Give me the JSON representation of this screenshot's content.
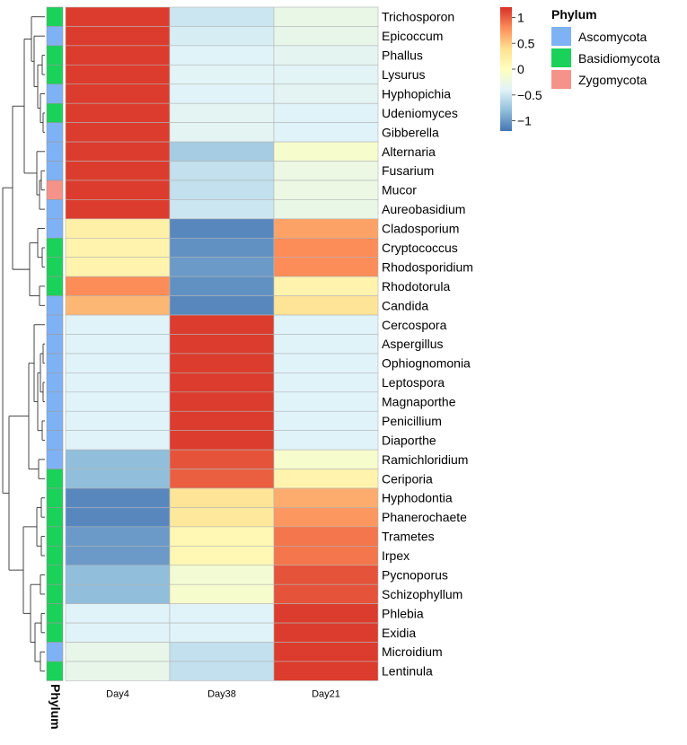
{
  "chart_data": {
    "type": "heatmap",
    "columns": [
      "Day4",
      "Day38",
      "Day21"
    ],
    "rows": [
      {
        "name": "Trichosporon",
        "phylum": "Basidiomycota",
        "values": [
          1.15,
          -0.5,
          -0.28
        ]
      },
      {
        "name": "Epicoccum",
        "phylum": "Ascomycota",
        "values": [
          1.15,
          -0.45,
          -0.3
        ]
      },
      {
        "name": "Phallus",
        "phylum": "Basidiomycota",
        "values": [
          1.15,
          -0.4,
          -0.35
        ]
      },
      {
        "name": "Lysurus",
        "phylum": "Basidiomycota",
        "values": [
          1.15,
          -0.38,
          -0.38
        ]
      },
      {
        "name": "Hyphopichia",
        "phylum": "Ascomycota",
        "values": [
          1.15,
          -0.4,
          -0.36
        ]
      },
      {
        "name": "Udeniomyces",
        "phylum": "Basidiomycota",
        "values": [
          1.15,
          -0.36,
          -0.4
        ]
      },
      {
        "name": "Gibberella",
        "phylum": "Ascomycota",
        "values": [
          1.15,
          -0.36,
          -0.4
        ]
      },
      {
        "name": "Alternaria",
        "phylum": "Ascomycota",
        "values": [
          1.15,
          -0.7,
          -0.1
        ]
      },
      {
        "name": "Fusarium",
        "phylum": "Ascomycota",
        "values": [
          1.15,
          -0.55,
          -0.25
        ]
      },
      {
        "name": "Mucor",
        "phylum": "Zygomycota",
        "values": [
          1.15,
          -0.55,
          -0.25
        ]
      },
      {
        "name": "Aureobasidium",
        "phylum": "Ascomycota",
        "values": [
          1.15,
          -0.5,
          -0.28
        ]
      },
      {
        "name": "Cladosporium",
        "phylum": "Ascomycota",
        "values": [
          0.2,
          -1.1,
          0.7
        ]
      },
      {
        "name": "Cryptococcus",
        "phylum": "Basidiomycota",
        "values": [
          0.15,
          -1.05,
          0.8
        ]
      },
      {
        "name": "Rhodosporidium",
        "phylum": "Basidiomycota",
        "values": [
          0.15,
          -1.0,
          0.8
        ]
      },
      {
        "name": "Rhodotorula",
        "phylum": "Basidiomycota",
        "values": [
          0.8,
          -1.05,
          0.15
        ]
      },
      {
        "name": "Candida",
        "phylum": "Ascomycota",
        "values": [
          0.6,
          -1.1,
          0.35
        ]
      },
      {
        "name": "Cercospora",
        "phylum": "Ascomycota",
        "values": [
          -0.4,
          1.15,
          -0.4
        ]
      },
      {
        "name": "Aspergillus",
        "phylum": "Ascomycota",
        "values": [
          -0.4,
          1.15,
          -0.4
        ]
      },
      {
        "name": "Ophiognomonia",
        "phylum": "Ascomycota",
        "values": [
          -0.4,
          1.15,
          -0.4
        ]
      },
      {
        "name": "Leptospora",
        "phylum": "Ascomycota",
        "values": [
          -0.4,
          1.15,
          -0.4
        ]
      },
      {
        "name": "Magnaporthe",
        "phylum": "Ascomycota",
        "values": [
          -0.4,
          1.15,
          -0.4
        ]
      },
      {
        "name": "Penicillium",
        "phylum": "Ascomycota",
        "values": [
          -0.4,
          1.15,
          -0.4
        ]
      },
      {
        "name": "Diaporthe",
        "phylum": "Ascomycota",
        "values": [
          -0.4,
          1.15,
          -0.4
        ]
      },
      {
        "name": "Ramichloridium",
        "phylum": "Ascomycota",
        "values": [
          -0.8,
          1.05,
          -0.1
        ]
      },
      {
        "name": "Ceriporia",
        "phylum": "Basidiomycota",
        "values": [
          -0.8,
          1.0,
          0.15
        ]
      },
      {
        "name": "Hyphodontia",
        "phylum": "Basidiomycota",
        "values": [
          -1.1,
          0.35,
          0.65
        ]
      },
      {
        "name": "Phanerochaete",
        "phylum": "Basidiomycota",
        "values": [
          -1.1,
          0.3,
          0.75
        ]
      },
      {
        "name": "Trametes",
        "phylum": "Basidiomycota",
        "values": [
          -1.0,
          0.1,
          0.9
        ]
      },
      {
        "name": "Irpex",
        "phylum": "Basidiomycota",
        "values": [
          -1.0,
          0.1,
          0.9
        ]
      },
      {
        "name": "Pycnoporus",
        "phylum": "Basidiomycota",
        "values": [
          -0.8,
          -0.15,
          1.05
        ]
      },
      {
        "name": "Schizophyllum",
        "phylum": "Basidiomycota",
        "values": [
          -0.8,
          -0.1,
          1.05
        ]
      },
      {
        "name": "Phlebia",
        "phylum": "Basidiomycota",
        "values": [
          -0.4,
          -0.4,
          1.15
        ]
      },
      {
        "name": "Exidia",
        "phylum": "Basidiomycota",
        "values": [
          -0.4,
          -0.4,
          1.15
        ]
      },
      {
        "name": "Microidium",
        "phylum": "Ascomycota",
        "values": [
          -0.3,
          -0.55,
          1.15
        ]
      },
      {
        "name": "Lentinula",
        "phylum": "Basidiomycota",
        "values": [
          -0.3,
          -0.55,
          1.15
        ]
      }
    ],
    "scale": {
      "min": -1.2,
      "max": 1.2,
      "ticks": [
        1,
        0.5,
        0,
        -0.5,
        -1
      ],
      "tick_labels": [
        "1",
        "0.5",
        "0",
        "−0.5",
        "−1"
      ],
      "colors": [
        "#4575b4",
        "#91bfdb",
        "#e0f3f8",
        "#ffffbf",
        "#fee090",
        "#fc8d59",
        "#d73027"
      ]
    },
    "annotation": {
      "title": "Phylum",
      "axis_label": "Phylum",
      "categories": [
        {
          "name": "Ascomycota",
          "color": "#7fb2f5"
        },
        {
          "name": "Basidiomycota",
          "color": "#1ad15a"
        },
        {
          "name": "Zygomycota",
          "color": "#f5928a"
        }
      ]
    },
    "row_clustering": true
  }
}
